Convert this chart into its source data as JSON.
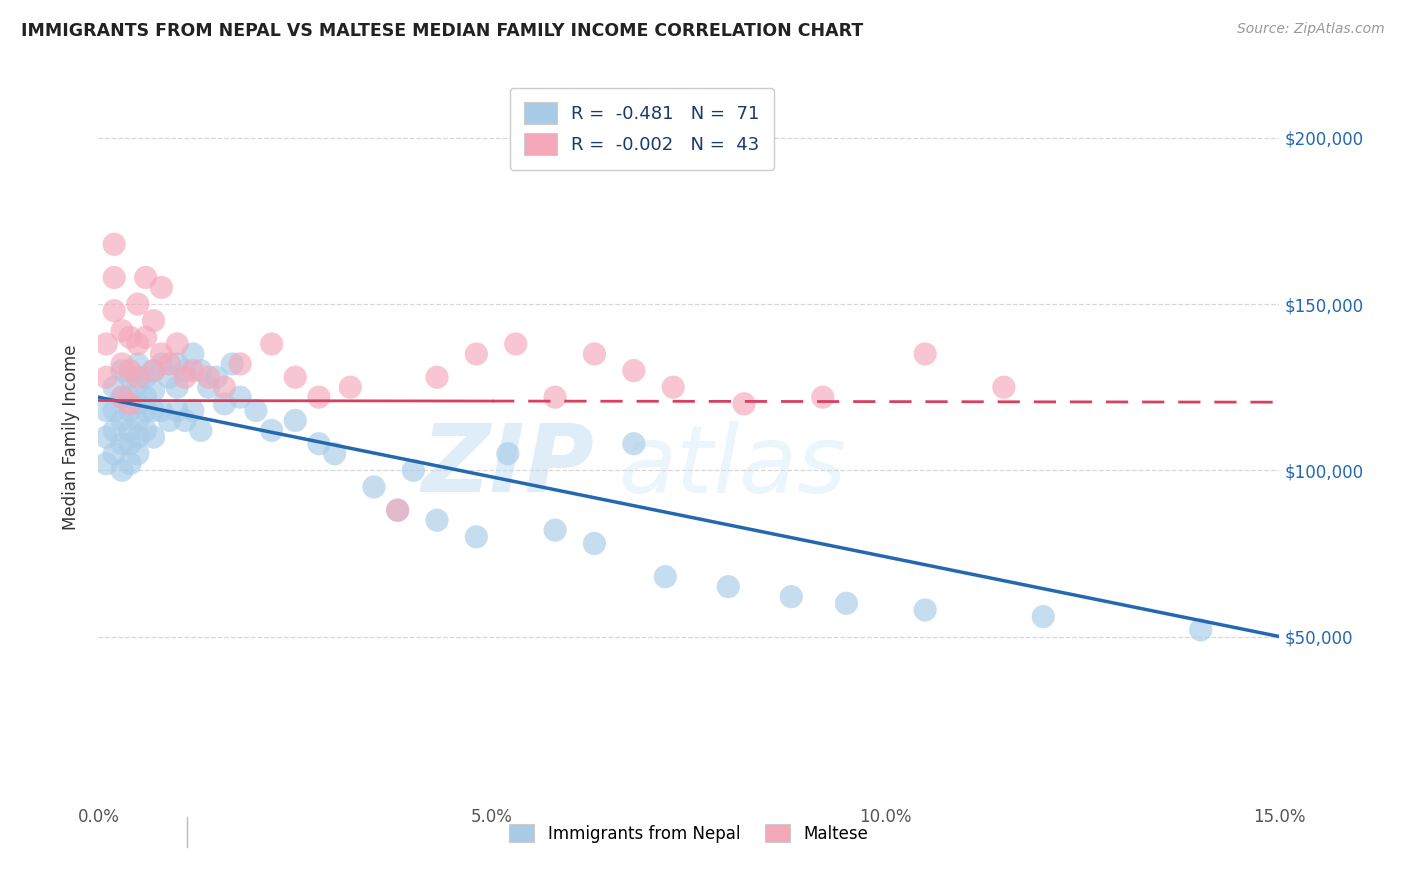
{
  "title": "IMMIGRANTS FROM NEPAL VS MALTESE MEDIAN FAMILY INCOME CORRELATION CHART",
  "source": "Source: ZipAtlas.com",
  "ylabel": "Median Family Income",
  "x_min": 0.0,
  "x_max": 0.15,
  "y_min": 0,
  "y_max": 220000,
  "yticks": [
    0,
    50000,
    100000,
    150000,
    200000
  ],
  "ytick_labels_right": [
    "",
    "$50,000",
    "$100,000",
    "$150,000",
    "$200,000"
  ],
  "xticks": [
    0.0,
    0.05,
    0.1,
    0.15
  ],
  "xtick_labels": [
    "0.0%",
    "5.0%",
    "10.0%",
    "15.0%"
  ],
  "nepal_color": "#a8cce8",
  "maltese_color": "#f4a8ba",
  "nepal_line_color": "#2468b0",
  "maltese_line_color": "#d84060",
  "nepal_R": -0.481,
  "nepal_N": 71,
  "maltese_R": -0.002,
  "maltese_N": 43,
  "watermark": "ZIPatlas",
  "legend_label_1": "Immigrants from Nepal",
  "legend_label_2": "Maltese",
  "nepal_line_x0": 0.0,
  "nepal_line_y0": 122000,
  "nepal_line_x1": 0.15,
  "nepal_line_y1": 50000,
  "maltese_line_x0": 0.0,
  "maltese_line_y0": 121000,
  "maltese_line_x1": 0.15,
  "maltese_line_y1": 120500,
  "nepal_x": [
    0.001,
    0.001,
    0.001,
    0.002,
    0.002,
    0.002,
    0.002,
    0.003,
    0.003,
    0.003,
    0.003,
    0.003,
    0.004,
    0.004,
    0.004,
    0.004,
    0.004,
    0.004,
    0.005,
    0.005,
    0.005,
    0.005,
    0.005,
    0.005,
    0.006,
    0.006,
    0.006,
    0.006,
    0.007,
    0.007,
    0.007,
    0.007,
    0.008,
    0.008,
    0.009,
    0.009,
    0.01,
    0.01,
    0.01,
    0.011,
    0.011,
    0.012,
    0.012,
    0.013,
    0.013,
    0.014,
    0.015,
    0.016,
    0.017,
    0.018,
    0.02,
    0.022,
    0.025,
    0.028,
    0.03,
    0.035,
    0.038,
    0.04,
    0.043,
    0.048,
    0.052,
    0.058,
    0.063,
    0.068,
    0.072,
    0.08,
    0.088,
    0.095,
    0.105,
    0.12,
    0.14
  ],
  "nepal_y": [
    118000,
    110000,
    102000,
    125000,
    118000,
    112000,
    105000,
    130000,
    122000,
    115000,
    108000,
    100000,
    128000,
    122000,
    118000,
    112000,
    108000,
    102000,
    132000,
    126000,
    120000,
    115000,
    110000,
    105000,
    128000,
    122000,
    118000,
    112000,
    130000,
    124000,
    118000,
    110000,
    132000,
    118000,
    128000,
    115000,
    132000,
    125000,
    118000,
    130000,
    115000,
    135000,
    118000,
    130000,
    112000,
    125000,
    128000,
    120000,
    132000,
    122000,
    118000,
    112000,
    115000,
    108000,
    105000,
    95000,
    88000,
    100000,
    85000,
    80000,
    105000,
    82000,
    78000,
    108000,
    68000,
    65000,
    62000,
    60000,
    58000,
    56000,
    52000
  ],
  "maltese_x": [
    0.001,
    0.001,
    0.002,
    0.002,
    0.002,
    0.003,
    0.003,
    0.003,
    0.004,
    0.004,
    0.004,
    0.005,
    0.005,
    0.005,
    0.006,
    0.006,
    0.007,
    0.007,
    0.008,
    0.008,
    0.009,
    0.01,
    0.011,
    0.012,
    0.014,
    0.016,
    0.018,
    0.022,
    0.025,
    0.028,
    0.032,
    0.038,
    0.043,
    0.048,
    0.053,
    0.058,
    0.063,
    0.068,
    0.073,
    0.082,
    0.092,
    0.105,
    0.115
  ],
  "maltese_y": [
    138000,
    128000,
    158000,
    168000,
    148000,
    142000,
    132000,
    122000,
    140000,
    130000,
    120000,
    150000,
    138000,
    128000,
    158000,
    140000,
    145000,
    130000,
    155000,
    135000,
    132000,
    138000,
    128000,
    130000,
    128000,
    125000,
    132000,
    138000,
    128000,
    122000,
    125000,
    88000,
    128000,
    135000,
    138000,
    122000,
    135000,
    130000,
    125000,
    120000,
    122000,
    135000,
    125000
  ]
}
